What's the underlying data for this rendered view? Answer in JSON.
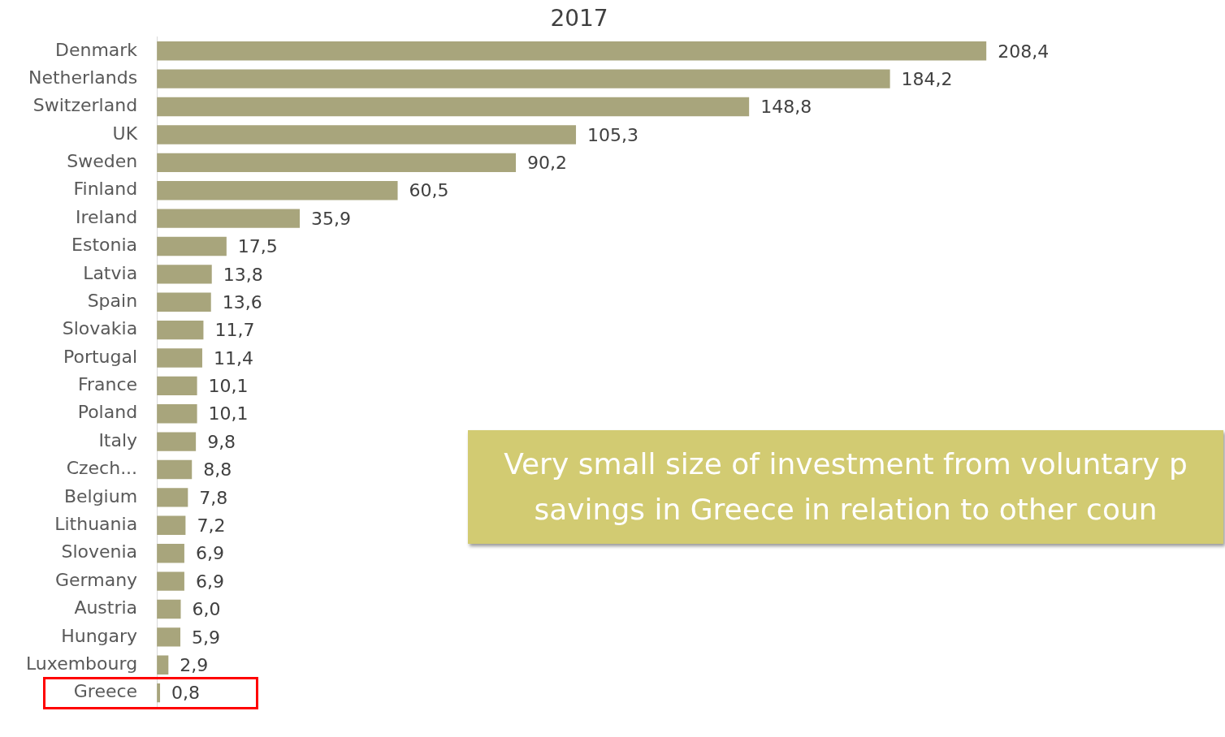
{
  "chart_data": {
    "type": "bar",
    "orientation": "horizontal",
    "title": "2017",
    "categories": [
      "Denmark",
      "Netherlands",
      "Switzerland",
      "UK",
      "Sweden",
      "Finland",
      "Ireland",
      "Estonia",
      "Latvia",
      "Spain",
      "Slovakia",
      "Portugal",
      "France",
      "Poland",
      "Italy",
      "Czech...",
      "Belgium",
      "Lithuania",
      "Slovenia",
      "Germany",
      "Austria",
      "Hungary",
      "Luxembourg",
      "Greece"
    ],
    "values": [
      208.4,
      184.2,
      148.8,
      105.3,
      90.2,
      60.5,
      35.9,
      17.5,
      13.8,
      13.6,
      11.7,
      11.4,
      10.1,
      10.1,
      9.8,
      8.8,
      7.8,
      7.2,
      6.9,
      6.9,
      6.0,
      5.9,
      2.9,
      0.8
    ],
    "value_labels": [
      "208,4",
      "184,2",
      "148,8",
      "105,3",
      "90,2",
      "60,5",
      "35,9",
      "17,5",
      "13,8",
      "13,6",
      "11,7",
      "11,4",
      "10,1",
      "10,1",
      "9,8",
      "8,8",
      "7,8",
      "7,2",
      "6,9",
      "6,9",
      "6,0",
      "5,9",
      "2,9",
      "0,8"
    ],
    "color": "#a8a57c",
    "grid": false,
    "legend": false,
    "tick_labels": "y",
    "annotations": [
      "Very small size of investment from voluntary p\nsavings in Greece in relation to other coun"
    ]
  }
}
